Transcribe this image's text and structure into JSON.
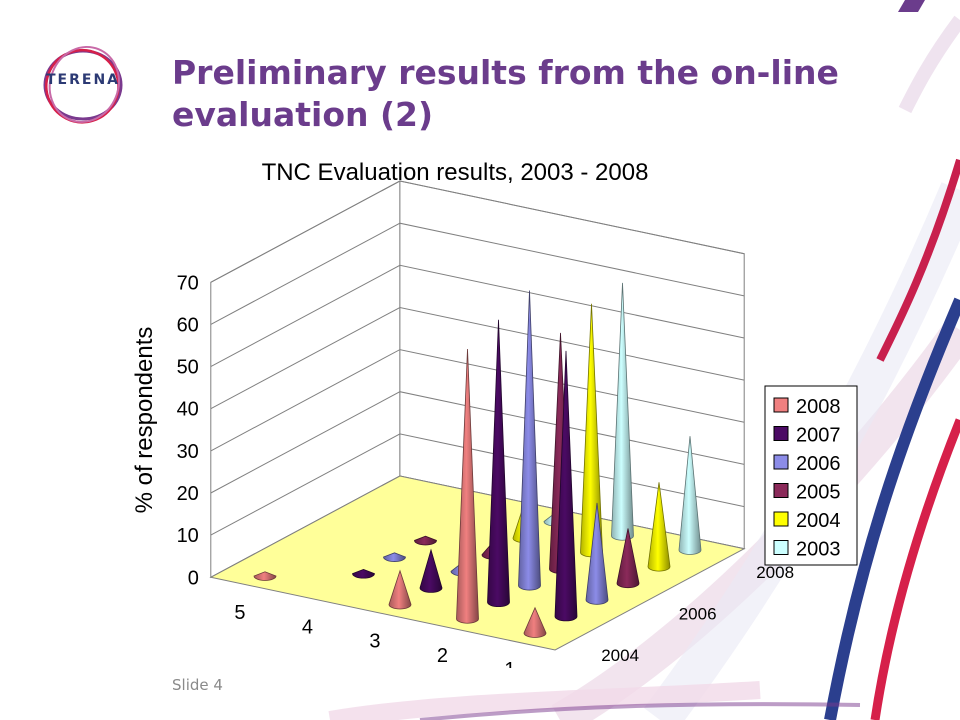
{
  "slide": {
    "title": "Preliminary results from the on-line evaluation (2)",
    "logo_text": "TERENA",
    "slide_number": "Slide 4"
  },
  "chart_data": {
    "type": "bar",
    "style": "3d-cone",
    "title": "TNC Evaluation results, 2003 - 2008",
    "ylabel": "% of respondents",
    "ylim": [
      0,
      70
    ],
    "yticks": [
      0,
      10,
      20,
      30,
      40,
      50,
      60,
      70
    ],
    "grid": true,
    "legend_position": "right",
    "categories": [
      "5",
      "4",
      "3",
      "2",
      "1"
    ],
    "depth_tick_labels": [
      "2008",
      "2006",
      "2004"
    ],
    "series": [
      {
        "name": "2008",
        "color": "#f08080",
        "values": [
          1,
          0,
          8,
          64,
          6
        ]
      },
      {
        "name": "2007",
        "color": "#4b0a64",
        "values": [
          0,
          1,
          9,
          67,
          63
        ]
      },
      {
        "name": "2006",
        "color": "#8c8ce8",
        "values": [
          0,
          1,
          2,
          70,
          23
        ]
      },
      {
        "name": "2005",
        "color": "#8b2a5a",
        "values": [
          0,
          1,
          3,
          56,
          13
        ]
      },
      {
        "name": "2004",
        "color": "#ffff00",
        "values": [
          0,
          0,
          8,
          59,
          20
        ]
      },
      {
        "name": "2003",
        "color": "#ccffff",
        "values": [
          0,
          0,
          2,
          60,
          27
        ]
      }
    ]
  }
}
